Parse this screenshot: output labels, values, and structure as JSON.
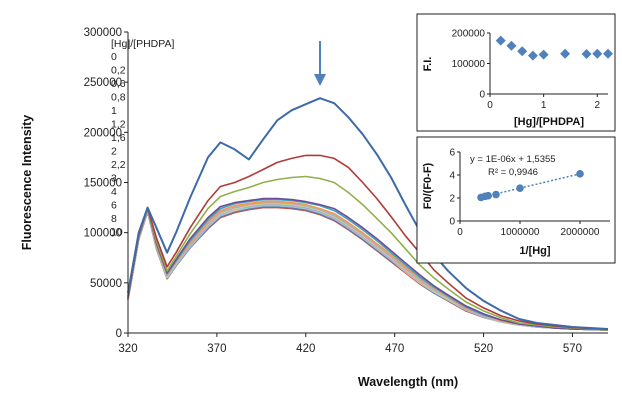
{
  "chart_data": [
    {
      "type": "line",
      "title": "",
      "xlabel": "Wavelength (nm)",
      "ylabel": "Fluorescence Intensity",
      "xlim": [
        320,
        590
      ],
      "ylim": [
        0,
        300000
      ],
      "xticks": [
        "320",
        "370",
        "420",
        "470",
        "520",
        "570"
      ],
      "yticks": [
        "0",
        "50000",
        "100000",
        "150000",
        "200000",
        "250000",
        "300000"
      ],
      "legend_title": "[Hg]/[PHDPA]",
      "legend_placement": "left, inside plot",
      "grid": false,
      "annotation": "downward arrow at ~428 nm",
      "x": [
        320,
        326,
        331,
        336,
        342,
        347,
        355,
        365,
        372,
        380,
        388,
        396,
        404,
        412,
        420,
        428,
        436,
        444,
        452,
        460,
        468,
        476,
        484,
        492,
        500,
        510,
        520,
        530,
        540,
        550,
        560,
        570,
        580,
        590
      ],
      "series": [
        {
          "name": "0",
          "color": "#3d6aa8",
          "values": [
            40000,
            100000,
            125000,
            105000,
            80000,
            100000,
            135000,
            175000,
            190000,
            183000,
            173000,
            193000,
            212000,
            222000,
            228000,
            234000,
            229000,
            215000,
            198000,
            178000,
            155000,
            128000,
            102000,
            78000,
            62000,
            45000,
            32000,
            22000,
            14000,
            10000,
            8000,
            6000,
            5000,
            4000
          ]
        },
        {
          "name": "0,2",
          "color": "#b03a37",
          "values": [
            37000,
            98000,
            125000,
            95000,
            66000,
            80000,
            105000,
            132000,
            146000,
            150000,
            156000,
            163000,
            170000,
            174000,
            177000,
            177000,
            174000,
            165000,
            150000,
            134000,
            116000,
            97000,
            80000,
            63000,
            50000,
            35000,
            25000,
            17000,
            12000,
            9000,
            7000,
            5500,
            4500,
            3500
          ]
        },
        {
          "name": "0,6",
          "color": "#8fb04a",
          "values": [
            36000,
            97000,
            125000,
            92000,
            62000,
            76000,
            99000,
            124000,
            136000,
            141000,
            145000,
            150000,
            153000,
            155000,
            156000,
            154000,
            150000,
            140000,
            128000,
            114000,
            100000,
            84000,
            68000,
            55000,
            44000,
            31000,
            22000,
            15000,
            10000,
            8000,
            6000,
            5000,
            4000,
            3000
          ]
        },
        {
          "name": "0,8",
          "color": "#6e4d94",
          "values": [
            35000,
            96000,
            125000,
            90000,
            60000,
            73000,
            94000,
            115000,
            126000,
            130000,
            132000,
            134000,
            134000,
            133000,
            131000,
            128000,
            124000,
            115000,
            105000,
            94000,
            82000,
            70000,
            58000,
            47000,
            38000,
            27000,
            19000,
            13000,
            9000,
            7000,
            5000,
            4000,
            3500,
            3000
          ]
        },
        {
          "name": "1",
          "color": "#3fa3c0",
          "values": [
            35000,
            96000,
            124000,
            89000,
            59000,
            72000,
            92000,
            113000,
            124000,
            129000,
            131000,
            133000,
            133000,
            132000,
            130000,
            127000,
            122000,
            113000,
            103000,
            92000,
            80000,
            68000,
            56000,
            46000,
            37000,
            26000,
            18000,
            13000,
            9000,
            7000,
            5000,
            4000,
            3500,
            3000
          ]
        },
        {
          "name": "1,2",
          "color": "#f39a4b",
          "values": [
            35000,
            95000,
            124000,
            88000,
            58000,
            71000,
            90000,
            111000,
            122000,
            127000,
            129000,
            131000,
            131000,
            130000,
            128000,
            124000,
            119000,
            110000,
            100000,
            89000,
            78000,
            66000,
            55000,
            45000,
            36000,
            25000,
            18000,
            12000,
            9000,
            7000,
            5000,
            4000,
            3500,
            3000
          ]
        },
        {
          "name": "1,6",
          "color": "#9db7dd",
          "values": [
            34000,
            95000,
            123000,
            88000,
            57000,
            70000,
            89000,
            110000,
            121000,
            126000,
            129000,
            131000,
            131000,
            130000,
            127000,
            123000,
            118000,
            109000,
            99000,
            88000,
            77000,
            65000,
            54000,
            44000,
            35000,
            25000,
            17000,
            12000,
            8500,
            6500,
            5000,
            4000,
            3500,
            3000
          ]
        },
        {
          "name": "2",
          "color": "#dd9c9a",
          "values": [
            34000,
            95000,
            123000,
            87000,
            57000,
            70000,
            88000,
            109000,
            120000,
            125000,
            128000,
            130000,
            130000,
            129000,
            127000,
            123000,
            117000,
            108000,
            98000,
            87000,
            76000,
            64000,
            53000,
            43000,
            35000,
            24000,
            17000,
            12000,
            8500,
            6500,
            5000,
            4000,
            3500,
            3000
          ]
        },
        {
          "name": "2,2",
          "color": "#c3d69b",
          "values": [
            34000,
            94000,
            123000,
            87000,
            56000,
            69000,
            88000,
            108000,
            119000,
            124000,
            127000,
            129000,
            129000,
            128000,
            126000,
            122000,
            116000,
            107000,
            97000,
            86000,
            75000,
            63000,
            52000,
            42000,
            34000,
            24000,
            17000,
            11500,
            8000,
            6500,
            5000,
            4000,
            3500,
            3000
          ]
        },
        {
          "name": "3",
          "color": "#b3a2c7",
          "values": [
            34000,
            94000,
            122000,
            86000,
            56000,
            69000,
            87000,
            107000,
            118000,
            124000,
            126000,
            128000,
            128000,
            127000,
            125000,
            121000,
            115000,
            106000,
            96000,
            85000,
            74000,
            62000,
            51000,
            42000,
            34000,
            24000,
            16500,
            11500,
            8000,
            6000,
            5000,
            4000,
            3500,
            3000
          ]
        },
        {
          "name": "4",
          "color": "#93cddd",
          "values": [
            33000,
            94000,
            122000,
            86000,
            55000,
            68000,
            86000,
            106000,
            117000,
            123000,
            125000,
            127000,
            127000,
            126000,
            124000,
            120000,
            114000,
            105000,
            95000,
            84000,
            73000,
            62000,
            51000,
            41000,
            33000,
            23000,
            16000,
            11000,
            8000,
            6000,
            5000,
            4000,
            3500,
            3000
          ]
        },
        {
          "name": "6",
          "color": "#fac090",
          "values": [
            33000,
            93000,
            122000,
            85000,
            55000,
            68000,
            86000,
            106000,
            117000,
            122000,
            125000,
            127000,
            127000,
            126000,
            124000,
            120000,
            114000,
            105000,
            95000,
            84000,
            73000,
            61000,
            50000,
            41000,
            33000,
            23000,
            16000,
            11000,
            8000,
            6000,
            5000,
            4000,
            3500,
            3000
          ]
        },
        {
          "name": "8",
          "color": "#4f81bd",
          "values": [
            33000,
            93000,
            121000,
            85000,
            55000,
            67000,
            85000,
            105000,
            116000,
            121000,
            124000,
            126000,
            126000,
            125000,
            123000,
            119000,
            113000,
            104000,
            94000,
            83000,
            72000,
            61000,
            50000,
            40000,
            33000,
            23000,
            16000,
            11000,
            8000,
            6000,
            5000,
            4000,
            3500,
            3000
          ]
        },
        {
          "name": "10",
          "color": "#c0504d",
          "values": [
            33000,
            93000,
            121000,
            84000,
            54000,
            67000,
            85000,
            104000,
            115000,
            120000,
            123000,
            125000,
            125000,
            124000,
            122000,
            118000,
            112000,
            103000,
            93000,
            82000,
            71000,
            60000,
            49000,
            40000,
            32000,
            22000,
            15500,
            11000,
            8000,
            6000,
            5000,
            4000,
            3500,
            3000
          ]
        }
      ]
    },
    {
      "type": "scatter",
      "title": "",
      "xlabel": "[Hg]/[PHDPA]",
      "ylabel": "F.I.",
      "xlim": [
        0,
        2.2
      ],
      "ylim": [
        0,
        200000
      ],
      "xticks": [
        "0",
        "1",
        "2"
      ],
      "yticks": [
        "0",
        "100000",
        "200000"
      ],
      "color": "#4f81bd",
      "x": [
        0.2,
        0.4,
        0.6,
        0.8,
        1.0,
        1.4,
        1.8,
        2.0,
        2.2
      ],
      "y": [
        175000,
        158000,
        140000,
        126000,
        129000,
        132000,
        131000,
        132000,
        132000
      ]
    },
    {
      "type": "scatter",
      "title": "",
      "xlabel": "1/[Hg]",
      "ylabel": "F0/(F0-F)",
      "xlim": [
        0,
        2500000
      ],
      "ylim": [
        0,
        6
      ],
      "xticks": [
        "0",
        "1000000",
        "2000000"
      ],
      "yticks": [
        "0",
        "2",
        "4",
        "6"
      ],
      "color": "#4f81bd",
      "equation": "y = 1E-06x + 1,5355",
      "r2": "R² = 0,9946",
      "x": [
        350000,
        420000,
        470000,
        600000,
        1000000,
        2000000
      ],
      "y": [
        2.05,
        2.15,
        2.2,
        2.3,
        2.85,
        4.1
      ]
    }
  ]
}
